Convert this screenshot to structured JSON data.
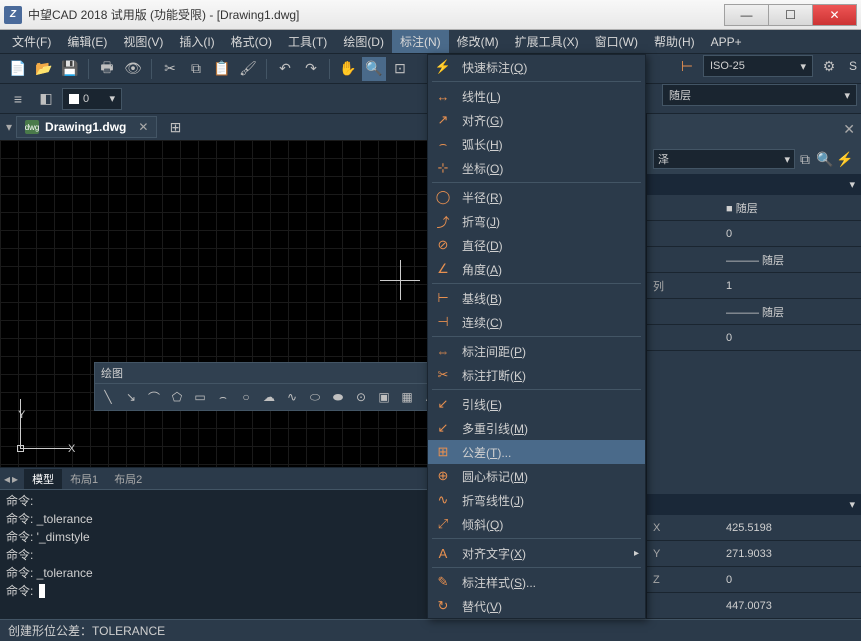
{
  "title": "中望CAD 2018 试用版 (功能受限) - [Drawing1.dwg]",
  "menu": [
    "文件(F)",
    "编辑(E)",
    "视图(V)",
    "插入(I)",
    "格式(O)",
    "工具(T)",
    "绘图(D)",
    "标注(N)",
    "修改(M)",
    "扩展工具(X)",
    "窗口(W)",
    "帮助(H)",
    "APP+"
  ],
  "active_menu_index": 7,
  "doc_tab": "Drawing1.dwg",
  "layer_combo": "0",
  "iso_label": "ISO-25",
  "layer2_label": "随层",
  "float_title": "绘图",
  "model_tabs": [
    "模型",
    "布局1",
    "布局2"
  ],
  "cmd_lines": [
    "命令:",
    "命令: _tolerance",
    "命令: '_dimstyle",
    "命令:",
    "命令: _tolerance"
  ],
  "cmd_prompt": "命令:",
  "statusbar": "创建形位公差：TOLERANCE",
  "dropdown": [
    {
      "icon": "⚡",
      "label": "快速标注",
      "key": "Q"
    },
    {
      "sep": true
    },
    {
      "icon": "↔",
      "label": "线性",
      "key": "L"
    },
    {
      "icon": "↗",
      "label": "对齐",
      "key": "G"
    },
    {
      "icon": "⌢",
      "label": "弧长",
      "key": "H"
    },
    {
      "icon": "⊹",
      "label": "坐标",
      "key": "O"
    },
    {
      "sep": true
    },
    {
      "icon": "◯",
      "label": "半径",
      "key": "R"
    },
    {
      "icon": "⤴",
      "label": "折弯",
      "key": "J"
    },
    {
      "icon": "⊘",
      "label": "直径",
      "key": "D"
    },
    {
      "icon": "∠",
      "label": "角度",
      "key": "A"
    },
    {
      "sep": true
    },
    {
      "icon": "⊢",
      "label": "基线",
      "key": "B"
    },
    {
      "icon": "⊣",
      "label": "连续",
      "key": "C"
    },
    {
      "sep": true
    },
    {
      "icon": "⇔",
      "label": "标注间距",
      "key": "P"
    },
    {
      "icon": "✂",
      "label": "标注打断",
      "key": "K"
    },
    {
      "sep": true
    },
    {
      "icon": "↙",
      "label": "引线",
      "key": "E"
    },
    {
      "icon": "↙",
      "label": "多重引线",
      "key": "M"
    },
    {
      "icon": "⊞",
      "label": "公差",
      "key": "T",
      "extra": "...",
      "hover": true
    },
    {
      "icon": "⊕",
      "label": "圆心标记",
      "key": "M"
    },
    {
      "icon": "∿",
      "label": "折弯线性",
      "key": "J"
    },
    {
      "icon": "⤢",
      "label": "倾斜",
      "key": "Q"
    },
    {
      "sep": true
    },
    {
      "icon": "A",
      "label": "对齐文字",
      "key": "X",
      "sub": true
    },
    {
      "sep": true
    },
    {
      "icon": "✎",
      "label": "标注样式",
      "key": "S",
      "extra": "..."
    },
    {
      "icon": "↻",
      "label": "替代",
      "key": "V"
    }
  ],
  "rp_select": "泽",
  "rp_rows1": [
    {
      "label": "",
      "value": "■ 随层"
    },
    {
      "label": "",
      "value": "0"
    },
    {
      "label": "",
      "value": "——— 随层"
    },
    {
      "label": "列",
      "value": "1"
    },
    {
      "label": "",
      "value": "——— 随层"
    },
    {
      "label": "",
      "value": "0"
    }
  ],
  "rp_coords": [
    {
      "label": "X",
      "value": "425.5198"
    },
    {
      "label": "Y",
      "value": "271.9033"
    },
    {
      "label": "Z",
      "value": "0"
    },
    {
      "label": "",
      "value": "447.0073"
    }
  ]
}
